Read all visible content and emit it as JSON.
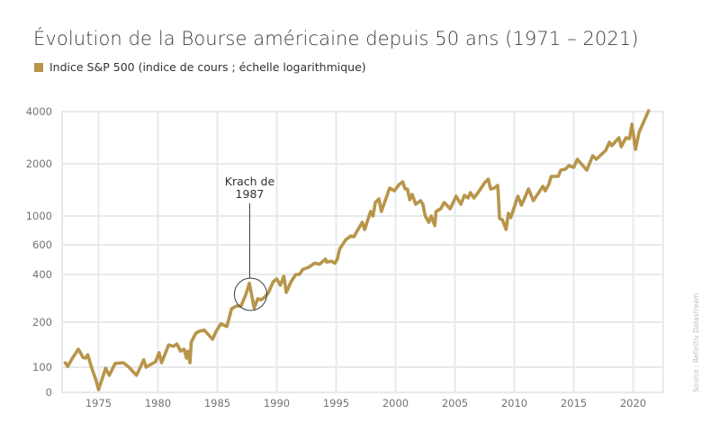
{
  "title": "Évolution de la Bourse américaine depuis 50 ans (1971 – 2021)",
  "legend": {
    "label": "Indice S&P 500 (indice de cours ; échelle logarithmique)",
    "color": "#b8954a"
  },
  "source": "Source : Refinitiv Datastream",
  "annotation": {
    "line1": "Krach de",
    "line2": "1987",
    "year": 1987.8,
    "value": 300
  },
  "chart_data": {
    "type": "line",
    "title": "Évolution de la Bourse américaine depuis 50 ans (1971 – 2021)",
    "xlabel": "",
    "ylabel": "",
    "y_scale": "log",
    "xlim": [
      1972,
      2022.5
    ],
    "ylim": [
      0,
      4000
    ],
    "x_ticks": [
      1975,
      1980,
      1985,
      1990,
      1995,
      2000,
      2005,
      2010,
      2015,
      2020
    ],
    "y_ticks": [
      0,
      100,
      200,
      400,
      600,
      1000,
      2000,
      4000
    ],
    "grid": true,
    "legend_position": "top-left",
    "series": [
      {
        "name": "Indice S&P 500 (indice de cours ; échelle logarithmique)",
        "color": "#b8954a",
        "x": [
          1972.2,
          1972.4,
          1972.8,
          1973.3,
          1973.7,
          1973.9,
          1974.1,
          1974.4,
          1974.8,
          1975.0,
          1975.4,
          1975.6,
          1975.9,
          1976.4,
          1977.1,
          1977.5,
          1978.2,
          1978.8,
          1979.0,
          1979.8,
          1980.1,
          1980.3,
          1980.9,
          1981.3,
          1981.6,
          1981.9,
          1982.2,
          1982.4,
          1982.5,
          1982.7,
          1982.8,
          1983.2,
          1983.5,
          1983.9,
          1984.6,
          1984.9,
          1985.3,
          1985.8,
          1986.2,
          1986.6,
          1987.0,
          1987.4,
          1987.7,
          1988.1,
          1988.4,
          1988.7,
          1989.0,
          1989.3,
          1989.7,
          1990.0,
          1990.3,
          1990.6,
          1990.8,
          1991.2,
          1991.6,
          1991.9,
          1992.2,
          1992.7,
          1993.2,
          1993.6,
          1994.1,
          1994.2,
          1994.6,
          1994.9,
          1995.1,
          1995.3,
          1995.8,
          1996.25,
          1996.5,
          1996.8,
          1997.2,
          1997.4,
          1997.9,
          1998.1,
          1998.3,
          1998.6,
          1998.8,
          1999.5,
          1999.9,
          2000.3,
          2000.6,
          2000.8,
          2001.0,
          2001.2,
          2001.4,
          2001.7,
          2002.1,
          2002.3,
          2002.5,
          2002.8,
          2003.0,
          2003.3,
          2003.4,
          2003.8,
          2004.1,
          2004.6,
          2005.1,
          2005.5,
          2005.8,
          2006.1,
          2006.3,
          2006.6,
          2007.0,
          2007.5,
          2007.8,
          2008.0,
          2008.3,
          2008.6,
          2008.65,
          2008.75,
          2009.0,
          2009.3,
          2009.5,
          2009.7,
          2010.3,
          2010.6,
          2011.2,
          2011.6,
          2012.4,
          2012.6,
          2012.9,
          2013.1,
          2013.7,
          2013.9,
          2014.3,
          2014.6,
          2015.0,
          2015.3,
          2016.1,
          2016.6,
          2016.9,
          2017.7,
          2018.0,
          2018.2,
          2018.8,
          2019.0,
          2019.4,
          2019.7,
          2019.9,
          2020.2,
          2020.5,
          2021.3
        ],
        "values": [
          107,
          101,
          115,
          132,
          116,
          115,
          121,
          100,
          46,
          11,
          68,
          96,
          68,
          106,
          107,
          101,
          68,
          112,
          100,
          109,
          125,
          107,
          141,
          138,
          143,
          128,
          132,
          115,
          128,
          107,
          147,
          169,
          174,
          177,
          154,
          174,
          195,
          187,
          243,
          253,
          253,
          300,
          352,
          246,
          281,
          277,
          288,
          308,
          360,
          375,
          342,
          390,
          308,
          360,
          400,
          400,
          429,
          442,
          467,
          460,
          494,
          474,
          480,
          467,
          494,
          568,
          655,
          703,
          693,
          776,
          893,
          787,
          1062,
          1000,
          1196,
          1255,
          1062,
          1449,
          1397,
          1519,
          1575,
          1431,
          1431,
          1240,
          1332,
          1168,
          1225,
          1168,
          1000,
          893,
          1000,
          844,
          1062,
          1100,
          1196,
          1100,
          1301,
          1168,
          1316,
          1270,
          1365,
          1270,
          1381,
          1556,
          1633,
          1431,
          1449,
          1502,
          1316,
          959,
          932,
          787,
          1036,
          972,
          1301,
          1154,
          1431,
          1225,
          1484,
          1397,
          1519,
          1692,
          1692,
          1838,
          1864,
          1953,
          1906,
          2124,
          1838,
          2228,
          2124,
          2392,
          2664,
          2540,
          2828,
          2510,
          2828,
          2795,
          3385,
          2422,
          3038,
          4050
        ]
      }
    ]
  }
}
